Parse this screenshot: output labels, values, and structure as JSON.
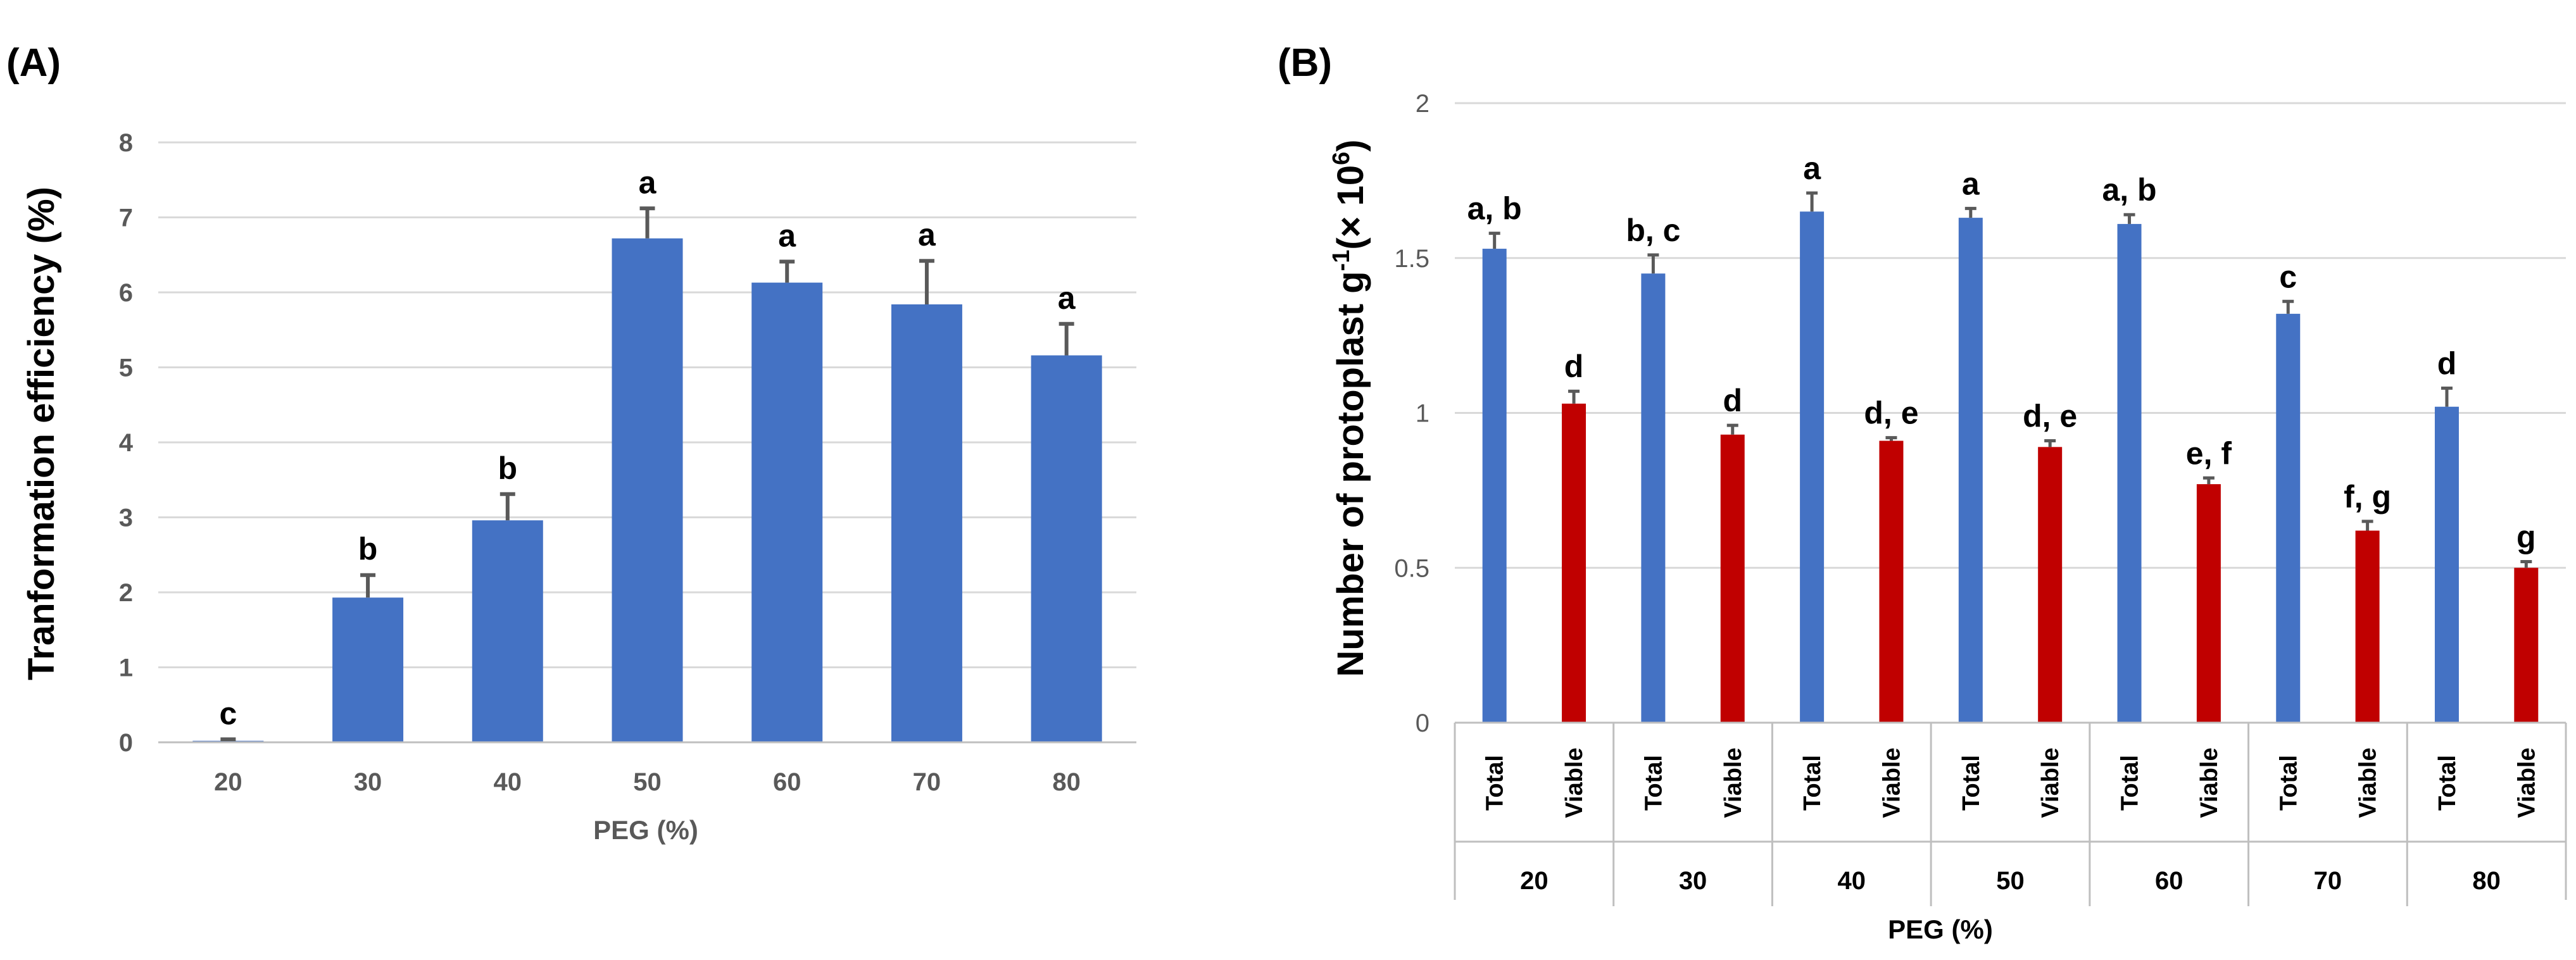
{
  "chart_data": [
    {
      "type": "bar",
      "panel": "(A)",
      "title": "",
      "xlabel": "PEG (%)",
      "ylabel": "Tranformation efficiency (%)",
      "ylim": [
        0,
        8
      ],
      "yticks": [
        "0",
        "1",
        "2",
        "3",
        "4",
        "5",
        "6",
        "7",
        "8"
      ],
      "grid": true,
      "categories": [
        "20",
        "30",
        "40",
        "50",
        "60",
        "70",
        "80"
      ],
      "values": [
        0.02,
        1.93,
        2.96,
        6.72,
        6.13,
        5.84,
        5.16
      ],
      "errors": [
        0.02,
        0.3,
        0.35,
        0.4,
        0.28,
        0.58,
        0.42
      ],
      "significance": [
        "c",
        "b",
        "b",
        "a",
        "a",
        "a",
        "a"
      ],
      "colors": {
        "bar": "#4472C4",
        "error": "#595959",
        "grid": "#D9D9D9",
        "axis": "#BFBFBF"
      }
    },
    {
      "type": "bar",
      "panel": "(B)",
      "title": "",
      "xlabel": "PEG (%)",
      "ylabel": "Number of protoplast g-1(× 106)",
      "ylabel_parts": [
        "Number of protoplast g",
        "-1",
        "(× 10",
        "6",
        ")"
      ],
      "ylim": [
        0,
        2
      ],
      "yticks": [
        "0",
        "0.5",
        "1",
        "1.5",
        "2"
      ],
      "grid": true,
      "groups": [
        "20",
        "30",
        "40",
        "50",
        "60",
        "70",
        "80"
      ],
      "subcategories": [
        "Total",
        "Viable"
      ],
      "series": [
        {
          "name": "Total",
          "color": "#4472C4",
          "values": [
            1.53,
            1.45,
            1.65,
            1.63,
            1.61,
            1.32,
            1.02
          ],
          "errors": [
            0.05,
            0.06,
            0.06,
            0.03,
            0.03,
            0.04,
            0.06
          ],
          "significance": [
            "a, b",
            "b, c",
            "a",
            "a",
            "a, b",
            "c",
            "d"
          ]
        },
        {
          "name": "Viable",
          "color": "#C00000",
          "values": [
            1.03,
            0.93,
            0.91,
            0.89,
            0.77,
            0.62,
            0.5
          ],
          "errors": [
            0.04,
            0.03,
            0.01,
            0.02,
            0.02,
            0.03,
            0.02
          ],
          "significance": [
            "d",
            "d",
            "d, e",
            "d, e",
            "e, f",
            "f, g",
            "g"
          ]
        }
      ],
      "colors": {
        "error": "#595959",
        "grid": "#D9D9D9",
        "axis": "#BFBFBF"
      }
    }
  ]
}
